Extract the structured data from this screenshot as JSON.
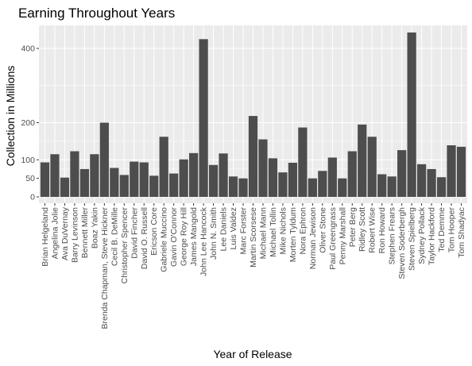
{
  "chart_data": {
    "type": "bar",
    "title": "Earning Throughout Years",
    "xlabel": "Year of Release",
    "ylabel": "Collection in Millions",
    "ylim": [
      0,
      445
    ],
    "yticks": [
      0,
      50,
      100,
      200,
      400
    ],
    "grid": true,
    "colors": {
      "bar": "#4d4d4d",
      "panel": "#ebebeb",
      "grid": "#ffffff"
    },
    "categories": [
      "Brian Helgeland",
      "Angelina Jolie",
      "Ava DuVernay",
      "Barry Levinson",
      "Bennett Miller",
      "Boaz Yakin",
      "Brenda Chapman, Steve Hickner",
      "Cecil B. DeMille",
      "Christopher Spencer",
      "David Fincher",
      "David O. Russell",
      "Ericson Core",
      "Gabriele Muccino",
      "Gavin O'Connor",
      "George Roy Hill",
      "James Mangold",
      "John Lee Hancock",
      "John N. Smith",
      "Lee Daniels",
      "Luis Valdez",
      "Marc Forster",
      "Martin Scorsese",
      "Michael Mann",
      "Michael Tollin",
      "Mike Nichols",
      "Morten Tyldum",
      "Nora Ephron",
      "Norman Jewison",
      "Oliver Stone",
      "Paul Greengrass",
      "Penny Marshall",
      "Peter Berg",
      "Ridley Scott",
      "Robert Wise",
      "Ron Howard",
      "Stephen Frears",
      "Steven Soderbergh",
      "Steven Spielberg",
      "Sydney Pollack",
      "Taylor Hackford",
      "Ted Demme",
      "Tom Hooper",
      "Tom Shadyac"
    ],
    "values": [
      93,
      115,
      52,
      123,
      75,
      115,
      200,
      78,
      59,
      95,
      93,
      57,
      162,
      63,
      101,
      118,
      425,
      86,
      117,
      55,
      50,
      218,
      155,
      104,
      66,
      92,
      187,
      50,
      70,
      106,
      50,
      123,
      195,
      162,
      61,
      55,
      126,
      443,
      88,
      75,
      53,
      139,
      135
    ]
  }
}
